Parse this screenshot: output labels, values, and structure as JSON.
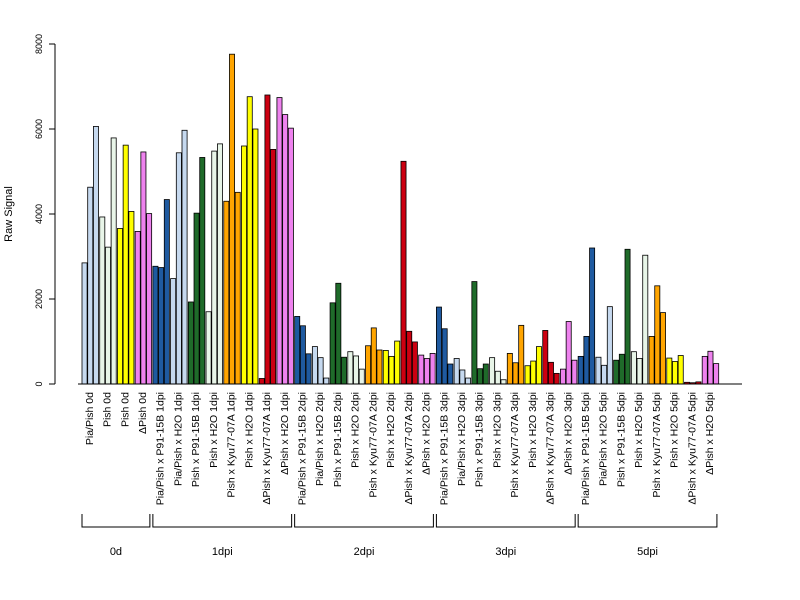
{
  "chart_data": {
    "type": "bar",
    "ylabel": "Raw Signal",
    "ylim": [
      0,
      8000
    ],
    "yticks": [
      0,
      2000,
      4000,
      6000,
      8000
    ],
    "categories": [
      "Pia/Pish 0d",
      "Pish 0d",
      "Pish 0d",
      "ΔPish 0d",
      "Pia/Pish x P91-15B 1dpi",
      "Pia/Pish x H2O 1dpi",
      "Pish x P91-15B 1dpi",
      "Pish x H2O 1dpi",
      "Pish x Kyu77-07A 1dpi",
      "Pish x H2O 1dpi",
      "ΔPish x Kyu77-07A 1dpi",
      "ΔPish x H2O 1dpi",
      "Pia/Pish x P91-15B 2dpi",
      "Pia/Pish x H2O 2dpi",
      "Pish x P91-15B 2dpi",
      "Pish x H2O 2dpi",
      "Pish x Kyu77-07A 2dpi",
      "Pish x H2O 2dpi",
      "ΔPish x Kyu77-07A 2dpi",
      "ΔPish x H2O 2dpi",
      "Pia/Pish x P91-15B 3dpi",
      "Pia/Pish x H2O 3dpi",
      "Pish x P91-15B 3dpi",
      "Pish x H2O 3dpi",
      "Pish x Kyu77-07A 3dpi",
      "Pish x H2O 3dpi",
      "ΔPish x Kyu77-07A 3dpi",
      "ΔPish x H2O 3dpi",
      "Pia/Pish x P91-15B 5dpi",
      "Pia/Pish x H2O 5dpi",
      "Pish x P91-15B 5dpi",
      "Pish x H2O 5dpi",
      "Pish x Kyu77-07A 5dpi",
      "Pish x H2O 5dpi",
      "ΔPish x Kyu77-07A 5dpi",
      "ΔPish x H2O 5dpi"
    ],
    "group_colors": [
      "#c6d9ef",
      "#e8f5e8",
      "#ffff00",
      "#ee82ee",
      "#1f5aa0",
      "#c6d9ef",
      "#1f6b2a",
      "#e8f5e8",
      "#ffa500",
      "#ffff00",
      "#cc0011",
      "#ee82ee",
      "#1f5aa0",
      "#c6d9ef",
      "#1f6b2a",
      "#e8f5e8",
      "#ffa500",
      "#ffff00",
      "#cc0011",
      "#ee82ee",
      "#1f5aa0",
      "#c6d9ef",
      "#1f6b2a",
      "#e8f5e8",
      "#ffa500",
      "#ffff00",
      "#cc0011",
      "#ee82ee",
      "#1f5aa0",
      "#c6d9ef",
      "#1f6b2a",
      "#e8f5e8",
      "#ffa500",
      "#ffff00",
      "#cc0011",
      "#ee82ee"
    ],
    "values": [
      [
        2850,
        4630,
        6060
      ],
      [
        3930,
        3220,
        5790
      ],
      [
        3660,
        5620,
        4060
      ],
      [
        3590,
        5460,
        4010
      ],
      [
        2770,
        2740,
        4340
      ],
      [
        2480,
        5440,
        5970
      ],
      [
        1930,
        4020,
        5330
      ],
      [
        1700,
        5480,
        5650
      ],
      [
        4300,
        7760,
        4510
      ],
      [
        5600,
        6760,
        6000
      ],
      [
        130,
        6800,
        5520
      ],
      [
        6740,
        6340,
        6020
      ],
      [
        1590,
        1370,
        710
      ],
      [
        880,
        620,
        140
      ],
      [
        1910,
        2370,
        630
      ],
      [
        760,
        660,
        350
      ],
      [
        900,
        1320,
        800
      ],
      [
        790,
        650,
        1010
      ],
      [
        5240,
        1240,
        990
      ],
      [
        680,
        600,
        720
      ],
      [
        1810,
        1300,
        470
      ],
      [
        600,
        330,
        140
      ],
      [
        2410,
        360,
        470
      ],
      [
        620,
        300,
        100
      ],
      [
        720,
        500,
        1380
      ],
      [
        430,
        540,
        880
      ],
      [
        1260,
        510,
        250
      ],
      [
        350,
        1470,
        560
      ],
      [
        650,
        1120,
        3200
      ],
      [
        630,
        440,
        1820
      ],
      [
        560,
        700,
        3170
      ],
      [
        760,
        600,
        3030
      ],
      [
        1120,
        2310,
        1680
      ],
      [
        610,
        530,
        670
      ],
      [
        40,
        30,
        50
      ],
      [
        650,
        770,
        480
      ]
    ],
    "time_groups": [
      {
        "label": "0d",
        "start": 0,
        "end": 3
      },
      {
        "label": "1dpi",
        "start": 4,
        "end": 11
      },
      {
        "label": "2dpi",
        "start": 12,
        "end": 19
      },
      {
        "label": "3dpi",
        "start": 20,
        "end": 27
      },
      {
        "label": "5dpi",
        "start": 28,
        "end": 35
      }
    ],
    "grid": false,
    "legend": "none"
  }
}
